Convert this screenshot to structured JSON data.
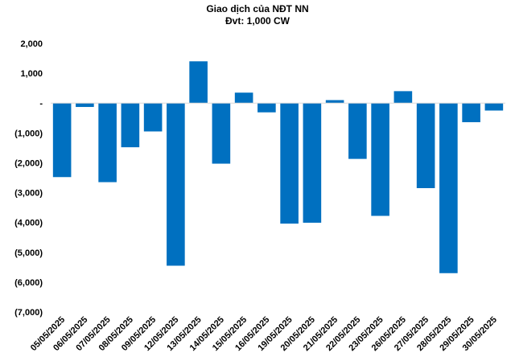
{
  "chart_data": {
    "type": "bar",
    "title": "Giao dịch của NĐT NN",
    "subtitle": "Đvt: 1,000 CW",
    "xlabel": "",
    "ylabel": "",
    "ylim": [
      -7000,
      2000
    ],
    "yticks": [
      2000,
      1000,
      0,
      -1000,
      -2000,
      -3000,
      -4000,
      -5000,
      -6000,
      -7000
    ],
    "ytick_labels": [
      "2,000",
      "1,000",
      "-",
      "(1,000)",
      "(2,000)",
      "(3,000)",
      "(4,000)",
      "(5,000)",
      "(6,000)",
      "(7,000)"
    ],
    "grid": false,
    "legend": "none",
    "bar_color": "#0070C0",
    "categories": [
      "05/05/2025",
      "06/05/2025",
      "07/05/2025",
      "08/05/2025",
      "09/05/2025",
      "12/05/2025",
      "13/05/2025",
      "14/05/2025",
      "15/05/2025",
      "16/05/2025",
      "19/05/2025",
      "20/05/2025",
      "21/05/2025",
      "22/05/2025",
      "23/05/2025",
      "26/05/2025",
      "27/05/2025",
      "28/05/2025",
      "29/05/2025",
      "30/05/2025"
    ],
    "values": [
      -2480,
      -130,
      -2650,
      -1480,
      -950,
      -5450,
      1400,
      -2030,
      350,
      -310,
      -4040,
      -4010,
      100,
      -1870,
      -3780,
      400,
      -2850,
      -5700,
      -640,
      -250
    ]
  }
}
